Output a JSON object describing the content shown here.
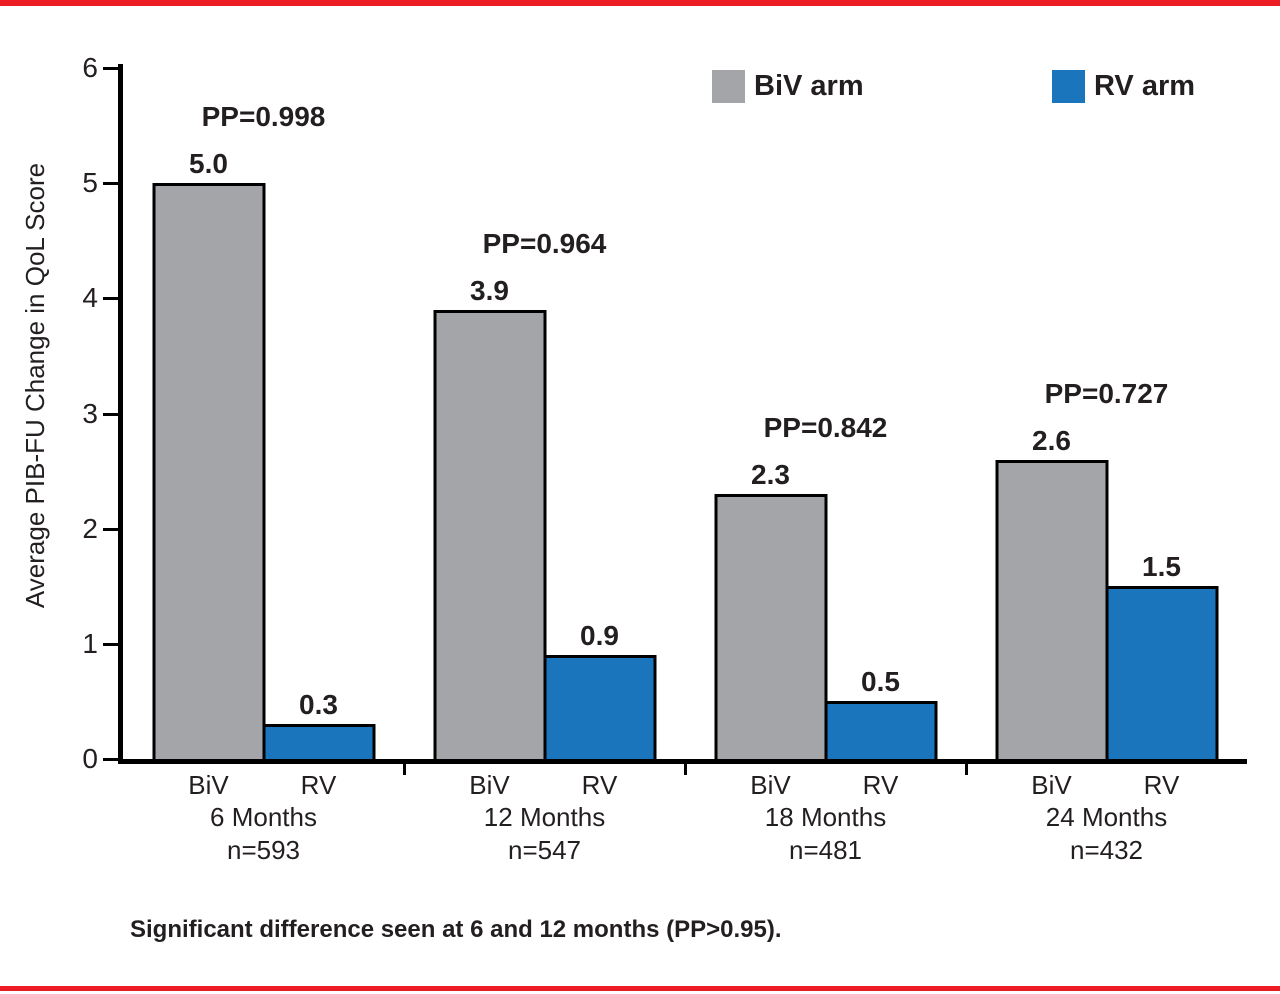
{
  "page": {
    "accent_red": "#ed1c24",
    "footnote": "Significant difference seen at 6 and 12 months (PP>0.95)."
  },
  "chart_data": {
    "type": "bar",
    "title": "",
    "xlabel": "",
    "ylabel": "Average PIB-FU Change in QoL Score",
    "ylim": [
      0,
      6
    ],
    "yticks": [
      0,
      1,
      2,
      3,
      4,
      5,
      6
    ],
    "grid": false,
    "legend_position": "top-right",
    "bar_colors": {
      "BiV": "#a3a5a8",
      "RV": "#1b75bc"
    },
    "legend": [
      {
        "label": "BiV arm",
        "color": "#a3a5a8"
      },
      {
        "label": "RV arm",
        "color": "#1b75bc"
      }
    ],
    "categories": [
      "6 Months",
      "12 Months",
      "18 Months",
      "24 Months"
    ],
    "series": [
      {
        "name": "BiV arm",
        "values": [
          5.0,
          3.9,
          2.3,
          2.6
        ]
      },
      {
        "name": "RV arm",
        "values": [
          0.3,
          0.9,
          0.5,
          1.5
        ]
      }
    ],
    "groups": [
      {
        "month_label": "6 Months",
        "n_label": "n=593",
        "pp_label": "PP=0.998",
        "bars": [
          {
            "arm": "BiV",
            "value": 5.0,
            "label": "5.0"
          },
          {
            "arm": "RV",
            "value": 0.3,
            "label": "0.3"
          }
        ]
      },
      {
        "month_label": "12 Months",
        "n_label": "n=547",
        "pp_label": "PP=0.964",
        "bars": [
          {
            "arm": "BiV",
            "value": 3.9,
            "label": "3.9"
          },
          {
            "arm": "RV",
            "value": 0.9,
            "label": "0.9"
          }
        ]
      },
      {
        "month_label": "18 Months",
        "n_label": "n=481",
        "pp_label": "PP=0.842",
        "bars": [
          {
            "arm": "BiV",
            "value": 2.3,
            "label": "2.3"
          },
          {
            "arm": "RV",
            "value": 0.5,
            "label": "0.5"
          }
        ]
      },
      {
        "month_label": "24 Months",
        "n_label": "n=432",
        "pp_label": "PP=0.727",
        "bars": [
          {
            "arm": "BiV",
            "value": 2.6,
            "label": "2.6"
          },
          {
            "arm": "RV",
            "value": 1.5,
            "label": "1.5"
          }
        ]
      }
    ]
  }
}
